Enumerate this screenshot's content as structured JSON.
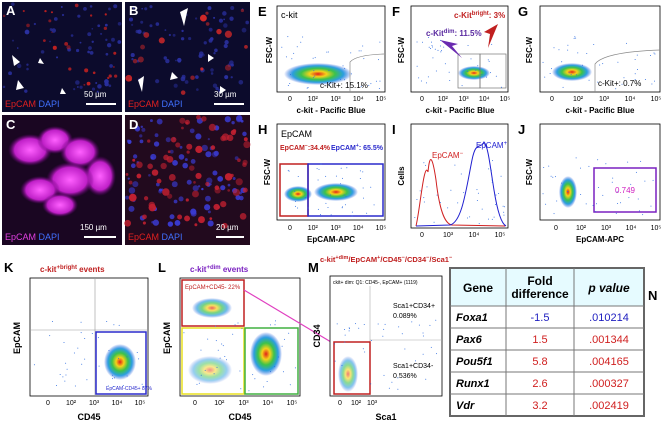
{
  "panels": {
    "A": {
      "label": "A",
      "stain": [
        "EpCAM",
        "DAPI"
      ],
      "scale": "50 µm"
    },
    "B": {
      "label": "B",
      "stain": [
        "EpCAM",
        "DAPI"
      ],
      "scale": "30 µm"
    },
    "C": {
      "label": "C",
      "stain": [
        "EpCAM",
        "DAPI"
      ],
      "scale": "150 µm"
    },
    "D": {
      "label": "D",
      "stain": [
        "EpCAM",
        "DAPI"
      ],
      "scale": "20 µm"
    },
    "E": {
      "label": "E",
      "gate_name": "c-kit",
      "gate": "c-Kit+: 15.1%",
      "y_axis": "FSC-W",
      "x_axis": "c-kit - Pacific Blue",
      "x_ticks": [
        "0",
        "10²",
        "10³",
        "10⁴",
        "10⁵"
      ]
    },
    "F": {
      "label": "F",
      "dim": {
        "base": "c-Kit",
        "sup": "dim",
        "rest": ": 11.5%"
      },
      "bright": {
        "base": "c-Kit",
        "sup": "bright",
        "rest": ": 3%"
      },
      "y_axis": "FSC-W",
      "x_axis": "c-kit - Pacific Blue",
      "x_ticks": [
        "0",
        "10²",
        "10³",
        "10⁴",
        "10⁵"
      ]
    },
    "G": {
      "label": "G",
      "gate": "c-Kit+: 0.7%",
      "y_axis": "FSC-W",
      "x_axis": "c-kit - Pacific Blue",
      "x_ticks": [
        "0",
        "10²",
        "10³",
        "10⁴",
        "10⁵"
      ]
    },
    "H": {
      "label": "H",
      "gate_name": "EpCAM",
      "neg": {
        "base": "EpCAM",
        "sup": "−",
        "rest": ":34.4%"
      },
      "pos": {
        "base": "EpCAM",
        "sup": "+",
        "rest": ": 65.5%"
      },
      "y_axis": "FSC-W",
      "x_axis": "EpCAM-APC",
      "x_ticks": [
        "0",
        "10²",
        "10³",
        "10⁴",
        "10⁵"
      ]
    },
    "I": {
      "label": "I",
      "neg": {
        "base": "EpCAM",
        "sup": "−"
      },
      "pos": {
        "base": "EpCAM",
        "sup": "+"
      },
      "y_axis": "Cells",
      "x_ticks": [
        "0",
        "10³",
        "10⁴",
        "10⁵"
      ]
    },
    "J": {
      "label": "J",
      "gate": "0.749",
      "y_axis": "FSC-W",
      "x_axis": "EpCAM-APC",
      "x_ticks": [
        "0",
        "10²",
        "10³",
        "10⁴",
        "10⁵"
      ]
    },
    "K": {
      "label": "K",
      "title": {
        "base": "c-kit",
        "sup": "+bright",
        "rest": " events"
      },
      "gate": "EpCAM-CD45+ 87%",
      "y_axis": "EpCAM",
      "x_axis": "CD45",
      "x_ticks": [
        "0",
        "10²",
        "10³",
        "10⁴",
        "10⁵"
      ]
    },
    "L": {
      "label": "L",
      "title": {
        "base": "c-kit",
        "sup": "+dim",
        "rest": " events"
      },
      "gate": "EpCAM+CD45- 22%",
      "y_axis": "EpCAM",
      "x_axis": "CD45",
      "x_ticks": [
        "0",
        "10²",
        "10³",
        "10⁴",
        "10⁵"
      ]
    },
    "M": {
      "label": "M",
      "title": [
        {
          "text": "c-kit"
        },
        {
          "sup": "+dim"
        },
        {
          "text": "/EpCAM"
        },
        {
          "sup": "+"
        },
        {
          "text": "/CD45"
        },
        {
          "sup": "−"
        },
        {
          "text": "/CD34"
        },
        {
          "sup": "−"
        },
        {
          "text": "/Sca1"
        },
        {
          "sup": "−"
        }
      ],
      "subtitle": "ckit+ dim: Q1: CD45-, EpCAM+ (1119)",
      "q_upper": [
        "Sca1+CD34+",
        "0.089%"
      ],
      "q_lower": [
        "Sca1+CD34-",
        "0.536%"
      ],
      "y_axis": "CD34",
      "x_axis": "Sca1",
      "x_ticks": [
        "0",
        "10²",
        "10³"
      ]
    },
    "N": {
      "label": "N",
      "header": [
        "Gene",
        [
          "Fold",
          "difference"
        ],
        "p value"
      ],
      "rows": [
        [
          "Foxa1",
          "-1.5",
          ".010214"
        ],
        [
          "Pax6",
          "1.5",
          ".001344"
        ],
        [
          "Pou5f1",
          "5.8",
          ".004165"
        ],
        [
          "Runx1",
          "2.6",
          ".000327"
        ],
        [
          "Vdr",
          "3.2",
          ".002419"
        ]
      ]
    }
  }
}
